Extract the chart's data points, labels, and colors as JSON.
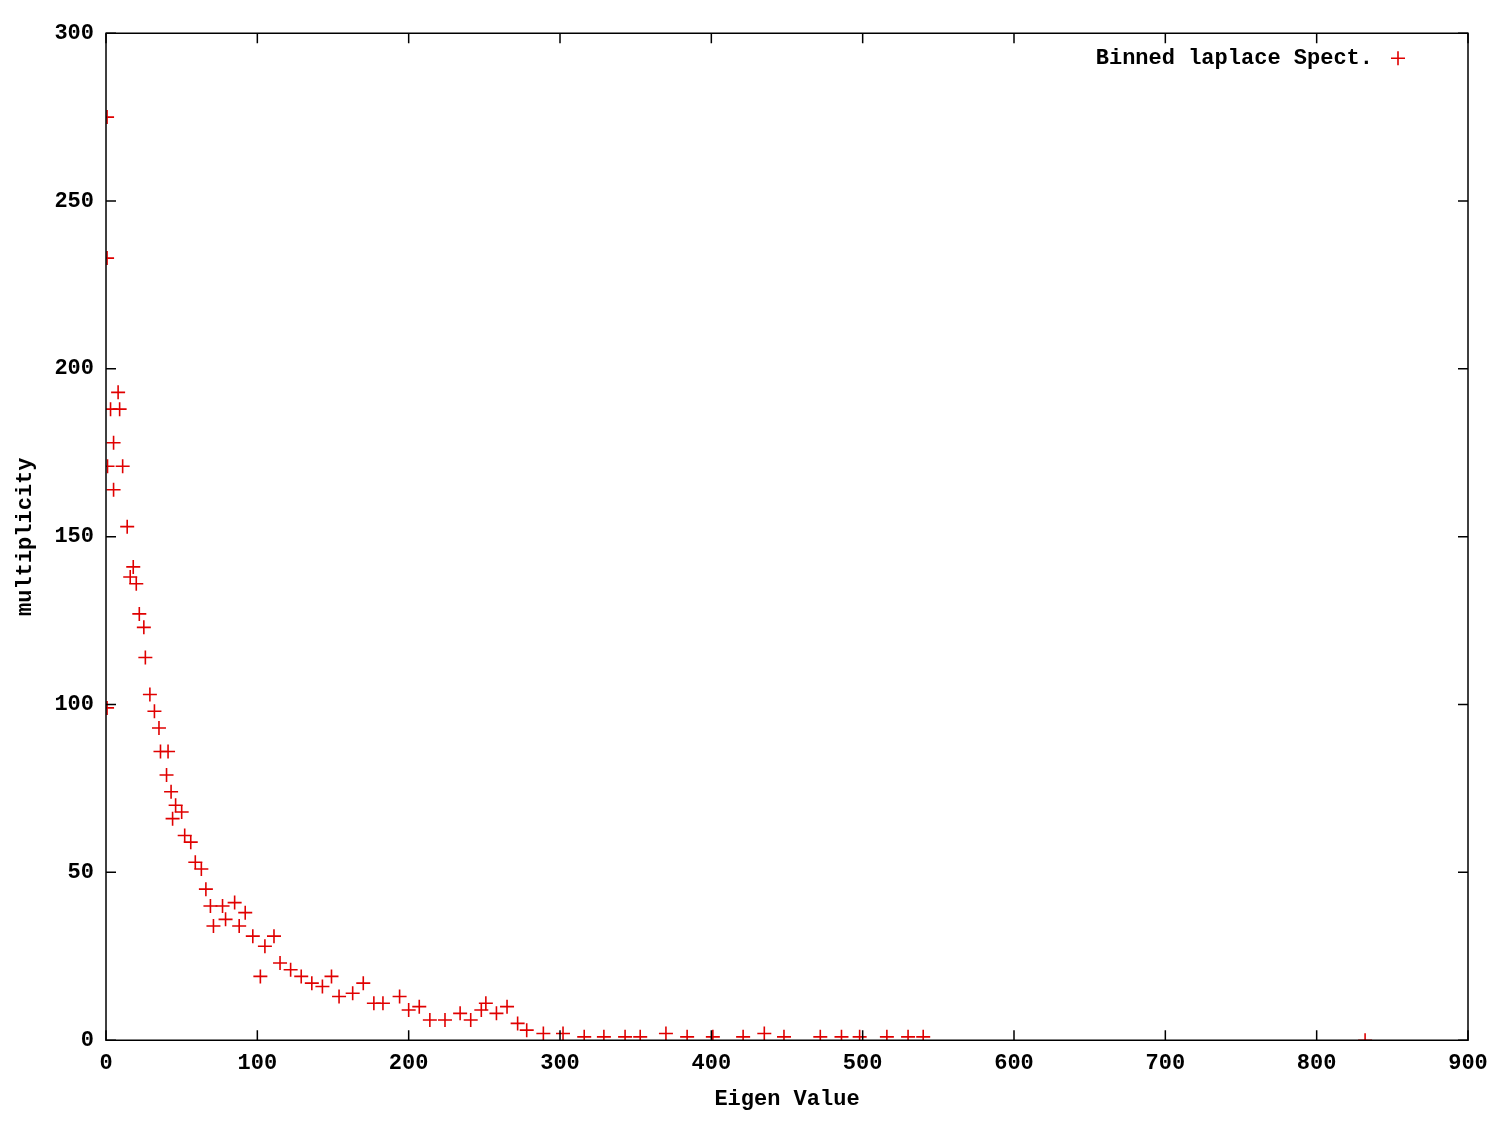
{
  "chart_data": {
    "type": "scatter",
    "xlabel": "Eigen Value",
    "ylabel": "multiplicity",
    "legend": "top right",
    "marker": "cross",
    "xlim": [
      0,
      900
    ],
    "xticks": [
      0,
      100,
      200,
      300,
      400,
      500,
      600,
      700,
      800,
      900
    ],
    "ylim": [
      0,
      300
    ],
    "yticks": [
      0,
      50,
      100,
      150,
      200,
      250,
      300
    ],
    "series": [
      {
        "name": "Binned laplace Spect.",
        "color": "#e00000",
        "x": [
          0.7,
          0.7,
          0.7,
          1,
          3,
          5,
          5,
          8,
          9,
          11,
          14,
          16,
          18,
          20,
          22,
          25,
          26,
          29,
          32,
          35,
          36,
          41,
          40,
          43,
          46,
          44,
          50,
          52,
          56,
          59,
          63,
          66,
          69,
          71,
          77,
          79,
          85,
          88,
          92,
          97,
          102,
          105,
          111,
          115,
          122,
          129,
          136,
          143,
          149,
          154,
          163,
          170,
          177,
          183,
          194,
          200,
          207,
          214,
          224,
          234,
          241,
          248,
          251,
          258,
          265,
          272,
          278,
          289,
          302,
          316,
          329,
          343,
          353,
          370,
          384,
          401,
          421,
          435,
          448,
          472,
          486,
          498,
          516,
          530,
          540,
          832
        ],
        "values": [
          275,
          233,
          99,
          171,
          188,
          178,
          164,
          193,
          188,
          171,
          153,
          138,
          141,
          136,
          127,
          123,
          114,
          103,
          98,
          93,
          86,
          86,
          79,
          74,
          70,
          66,
          68,
          61,
          59,
          53,
          51,
          45,
          40,
          34,
          40,
          36,
          41,
          34,
          38,
          31,
          19,
          28,
          31,
          23,
          21,
          19,
          17,
          16,
          19,
          13,
          14,
          17,
          11,
          11,
          13,
          9,
          10,
          6,
          6,
          8,
          6,
          9,
          11,
          8,
          10,
          5,
          3,
          2,
          2,
          1,
          1,
          1,
          1,
          2,
          1,
          1,
          1,
          2,
          1,
          1,
          1,
          1,
          1,
          1,
          1,
          0
        ]
      }
    ]
  }
}
